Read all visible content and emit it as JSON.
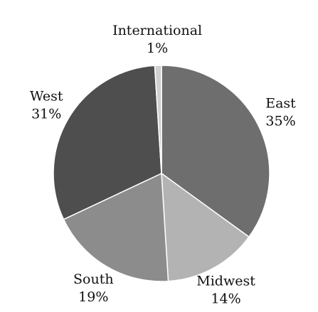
{
  "chart_data": {
    "type": "pie",
    "categories": [
      "East",
      "Midwest",
      "South",
      "West",
      "International"
    ],
    "values": [
      35,
      14,
      19,
      31,
      1
    ],
    "value_labels": [
      "35%",
      "14%",
      "19%",
      "31%",
      "1%"
    ],
    "colors": [
      "#6e6e6e",
      "#b3b3b3",
      "#8c8c8c",
      "#4e4e4e",
      "#d0d0d0"
    ]
  }
}
